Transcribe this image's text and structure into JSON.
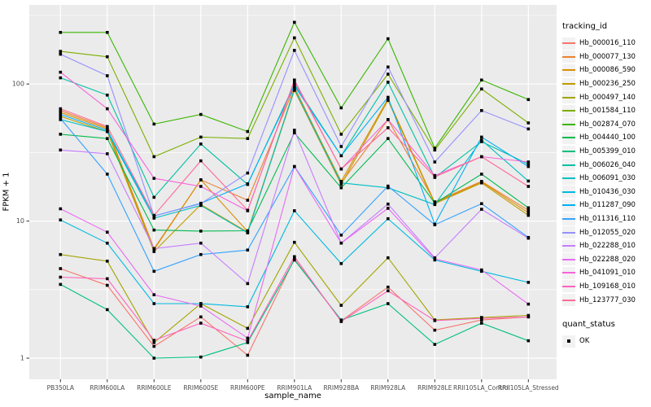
{
  "figure": {
    "x_axis_title": "sample_name",
    "y_axis_title": "FPKM + 1",
    "legend_title": "tracking_id",
    "legend2_title": "quant_status",
    "legend2_item": "OK",
    "panel_bg": "#EBEBEB",
    "grid_color": "#FFFFFF",
    "tick_label_color": "#4D4D4D",
    "point_color": "#000000"
  },
  "chart_data": {
    "type": "line",
    "title": "",
    "xlabel": "sample_name",
    "ylabel": "FPKM + 1",
    "yscale": "log10",
    "ylim": [
      0.7,
      350
    ],
    "y_ticks": [
      1,
      10,
      100
    ],
    "y_minor_ticks": [
      3.162,
      31.62,
      316.2
    ],
    "grid": true,
    "legend_position": "right",
    "marker": "black-square",
    "quant_status": "OK",
    "categories": [
      "PB350LA",
      "RRIM600LA",
      "RRIM600LE",
      "RRIM600SE",
      "RRIM600PE",
      "RRIM901LA",
      "RRIM928BA",
      "RRIM928LA",
      "RRIM928LE",
      "RRII105LA_Control",
      "RRII105LA_Stressed"
    ],
    "series": [
      {
        "name": "Hb_000016_110",
        "color": "#F8766D",
        "values": [
          4.5,
          3.4,
          1.22,
          2.0,
          1.05,
          5.3,
          1.87,
          3.3,
          1.6,
          1.9,
          2.0
        ]
      },
      {
        "name": "Hb_000077_130",
        "color": "#EA8331",
        "values": [
          64,
          48,
          6.3,
          20,
          14.2,
          95,
          19,
          55,
          13.8,
          19.5,
          12
        ]
      },
      {
        "name": "Hb_000086_590",
        "color": "#D89000",
        "values": [
          62,
          47,
          6.2,
          20,
          8.4,
          92,
          19.5,
          78,
          13.6,
          19.3,
          11.5
        ]
      },
      {
        "name": "Hb_000236_250",
        "color": "#C09B00",
        "values": [
          58,
          45,
          6.0,
          13.2,
          8.3,
          90,
          18.5,
          76,
          13.4,
          19.0,
          11.0
        ]
      },
      {
        "name": "Hb_000497_140",
        "color": "#A3A500",
        "values": [
          5.7,
          5.1,
          1.3,
          2.5,
          1.65,
          7.0,
          2.43,
          5.4,
          1.9,
          1.98,
          2.05
        ]
      },
      {
        "name": "Hb_001584_110",
        "color": "#7CAE00",
        "values": [
          173,
          158,
          29.5,
          41,
          40,
          217,
          43,
          118,
          33,
          92,
          52
        ]
      },
      {
        "name": "Hb_002874_070",
        "color": "#39B600",
        "values": [
          238,
          238,
          51,
          60,
          45,
          282,
          67,
          214,
          34,
          107,
          77
        ]
      },
      {
        "name": "Hb_004440_100",
        "color": "#00BB4E",
        "values": [
          43,
          40,
          8.6,
          8.45,
          8.5,
          44,
          17.5,
          40,
          13.5,
          22,
          12.5
        ]
      },
      {
        "name": "Hb_005399_010",
        "color": "#00BF7D",
        "values": [
          3.45,
          2.26,
          1.0,
          1.02,
          1.3,
          5.2,
          1.9,
          2.5,
          1.26,
          1.8,
          1.34
        ]
      },
      {
        "name": "Hb_006026_040",
        "color": "#00C1A3",
        "values": [
          111,
          83,
          14.9,
          36.5,
          18.5,
          100,
          30,
          103,
          20.8,
          38,
          26
        ]
      },
      {
        "name": "Hb_006091_030",
        "color": "#00BFC4",
        "values": [
          55,
          45,
          10.5,
          13.0,
          8.2,
          92,
          19,
          17.5,
          13.2,
          39,
          19.6
        ]
      },
      {
        "name": "Hb_010436_030",
        "color": "#00BAE0",
        "values": [
          10.2,
          6.9,
          2.5,
          2.5,
          2.37,
          11.9,
          4.9,
          10.4,
          5.2,
          4.3,
          3.57
        ]
      },
      {
        "name": "Hb_011287_090",
        "color": "#00B0F6",
        "values": [
          60,
          46,
          10.9,
          13.5,
          18.7,
          97,
          30,
          80,
          9.5,
          41,
          25
        ]
      },
      {
        "name": "Hb_011316_110",
        "color": "#35A2FF",
        "values": [
          56,
          22,
          4.3,
          5.7,
          6.15,
          25,
          7.9,
          18,
          9.4,
          13.4,
          7.6
        ]
      },
      {
        "name": "Hb_012055_020",
        "color": "#9590FF",
        "values": [
          165,
          115,
          10.9,
          13.4,
          22.4,
          176,
          35,
          133,
          27,
          64,
          47
        ]
      },
      {
        "name": "Hb_022288_010",
        "color": "#C77CFF",
        "values": [
          33,
          31,
          6.3,
          6.9,
          3.5,
          46,
          6.9,
          13.3,
          5.4,
          12.2,
          7.5
        ]
      },
      {
        "name": "Hb_022288_020",
        "color": "#E76BF3",
        "values": [
          12.3,
          8.3,
          2.9,
          2.4,
          1.4,
          25,
          6.9,
          12.4,
          5.3,
          4.4,
          2.48
        ]
      },
      {
        "name": "Hb_041091_010",
        "color": "#FA62DB",
        "values": [
          122,
          66,
          20.5,
          17.9,
          11.9,
          107,
          24,
          55,
          21.5,
          29.5,
          27
        ]
      },
      {
        "name": "Hb_109168_010",
        "color": "#FF62BC",
        "values": [
          3.9,
          3.8,
          1.35,
          1.8,
          1.33,
          5.5,
          1.85,
          3.1,
          1.88,
          1.95,
          2.0
        ]
      },
      {
        "name": "Hb_123777_030",
        "color": "#FF6A98",
        "values": [
          66,
          49,
          11,
          27.5,
          12,
          105,
          24,
          48,
          21,
          29.5,
          17.9
        ]
      }
    ]
  }
}
